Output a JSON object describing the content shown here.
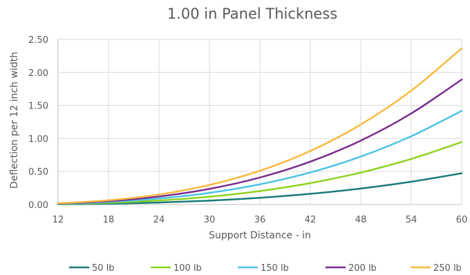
{
  "chart_data": {
    "type": "line",
    "title": "1.00 in Panel Thickness",
    "xlabel": "Support Distance - in",
    "ylabel": "Deflection per 12 inch width",
    "xlim": [
      12,
      60
    ],
    "ylim": [
      0,
      2.5
    ],
    "x_ticks": [
      "12",
      "18",
      "24",
      "30",
      "36",
      "42",
      "48",
      "54",
      "60"
    ],
    "y_ticks": [
      "0.00",
      "0.50",
      "1.00",
      "1.50",
      "2.00",
      "2.50"
    ],
    "grid": true,
    "legend_position": "bottom",
    "x": [
      12,
      18,
      24,
      30,
      36,
      42,
      48,
      54,
      60
    ],
    "series": [
      {
        "name": "50 lb",
        "color": "#1a7a7a",
        "values": [
          0.004,
          0.012,
          0.03,
          0.059,
          0.102,
          0.162,
          0.242,
          0.345,
          0.473
        ]
      },
      {
        "name": "100 lb",
        "color": "#8fd21f",
        "values": [
          0.008,
          0.026,
          0.061,
          0.118,
          0.204,
          0.324,
          0.484,
          0.69,
          0.946
        ]
      },
      {
        "name": "150 lb",
        "color": "#4cc3e3",
        "values": [
          0.011,
          0.038,
          0.091,
          0.177,
          0.306,
          0.486,
          0.726,
          1.034,
          1.419
        ]
      },
      {
        "name": "200 lb",
        "color": "#7b2d8e",
        "values": [
          0.015,
          0.051,
          0.121,
          0.237,
          0.409,
          0.649,
          0.968,
          1.379,
          1.892
        ]
      },
      {
        "name": "250 lb",
        "color": "#f9b93c",
        "values": [
          0.019,
          0.064,
          0.151,
          0.296,
          0.511,
          0.811,
          1.211,
          1.724,
          2.365
        ]
      }
    ]
  }
}
